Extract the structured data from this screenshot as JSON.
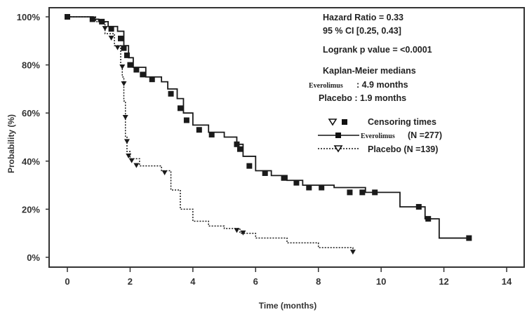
{
  "chart_data": {
    "type": "line",
    "subtype": "kaplan-meier",
    "title": "",
    "xlabel": "Time (months)",
    "ylabel": "Probability (%)",
    "xlim": [
      0,
      14
    ],
    "ylim": [
      0,
      100
    ],
    "xticks": [
      0,
      2,
      4,
      6,
      8,
      10,
      12,
      14
    ],
    "xtick_labels": [
      "0",
      "2",
      "4",
      "6",
      "8",
      "10",
      "12",
      "14"
    ],
    "yticks": [
      0,
      20,
      40,
      60,
      80,
      100
    ],
    "ytick_labels": [
      "0%",
      "20%",
      "40%",
      "60%",
      "80%",
      "100%"
    ],
    "grid": false,
    "series": [
      {
        "name": "Everolimus",
        "legend_label": "Everolimus(N =277)",
        "style": "solid",
        "marker": "square",
        "x": [
          0,
          0.8,
          1.0,
          1.3,
          1.6,
          1.8,
          1.95,
          2.1,
          2.5,
          3.0,
          3.2,
          3.5,
          3.7,
          4.0,
          4.5,
          5.0,
          5.4,
          5.6,
          6.0,
          6.5,
          7.0,
          7.5,
          8.5,
          9.5,
          10.5,
          10.6,
          11.4,
          11.85,
          12.8
        ],
        "y": [
          100,
          99,
          98,
          96,
          94,
          88,
          83,
          79,
          75,
          73,
          70,
          66,
          60,
          55,
          52,
          50,
          47,
          42,
          36,
          34,
          32,
          30,
          29,
          27,
          27,
          21,
          16,
          8,
          8
        ],
        "censor_x": [
          0,
          0.8,
          1.1,
          1.4,
          1.7,
          1.8,
          1.9,
          2.0,
          2.2,
          2.4,
          2.7,
          3.3,
          3.6,
          3.8,
          4.2,
          4.6,
          5.4,
          5.5,
          5.8,
          6.3,
          6.9,
          7.3,
          7.7,
          8.1,
          9.0,
          9.4,
          9.8,
          11.2,
          11.5,
          12.8
        ],
        "censor_y": [
          100,
          99,
          98,
          95,
          91,
          87,
          84,
          80,
          78,
          76,
          74,
          68,
          62,
          57,
          53,
          51,
          47,
          45,
          38,
          35,
          33,
          31,
          29,
          29,
          27,
          27,
          27,
          21,
          16,
          8
        ]
      },
      {
        "name": "Placebo",
        "legend_label": "Placebo  (N =139)",
        "style": "dotted",
        "marker": "triangle-down",
        "x": [
          0,
          0.9,
          1.2,
          1.5,
          1.7,
          1.75,
          1.8,
          1.85,
          1.9,
          2.0,
          2.3,
          3.0,
          3.3,
          3.6,
          4.0,
          4.5,
          5.0,
          5.5,
          6.0,
          7.0,
          8.0,
          9.1
        ],
        "y": [
          100,
          98,
          93,
          88,
          80,
          75,
          65,
          50,
          44,
          41,
          38,
          36,
          28,
          20,
          15,
          13,
          12,
          10,
          8,
          6,
          4,
          2
        ],
        "censor_x": [
          1.2,
          1.4,
          1.6,
          1.75,
          1.8,
          1.85,
          1.9,
          1.95,
          2.05,
          2.2,
          3.1,
          5.4,
          5.6,
          9.1
        ],
        "censor_y": [
          95,
          91,
          87,
          79,
          72,
          58,
          48,
          42,
          40,
          38,
          35,
          11,
          10,
          2
        ]
      }
    ],
    "annotations": {
      "hazard_ratio": "Hazard Ratio = 0.33",
      "ci": "95 % CI [0.25, 0.43]",
      "logrank": "Logrank p value = <0.0001",
      "km_title": "Kaplan-Meier medians",
      "median_evero_name": "Everolimus",
      "median_evero_value": ": 4.9 months",
      "median_placebo": "Placebo : 1.9 months",
      "censoring_label": "Censoring times"
    },
    "legend": {
      "position": "top-right",
      "evero_name": "Everolimus",
      "evero_n": "(N =277)",
      "placebo": "Placebo  (N =139)"
    },
    "colors": {
      "line": "#1a1a1a",
      "frame": "#333333"
    }
  }
}
